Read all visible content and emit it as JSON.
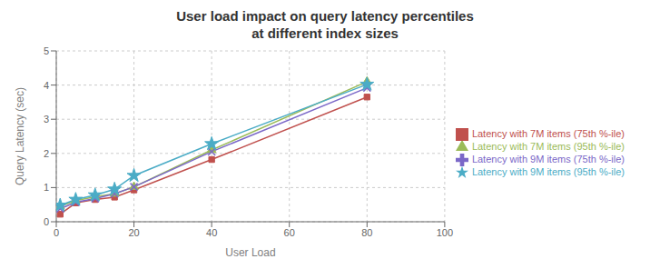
{
  "chart_data": {
    "type": "line",
    "title": "User load impact on query latency percentiles\nat different index sizes",
    "x_label": "User Load",
    "y_label": "Query Latency (sec)",
    "x": [
      1,
      5,
      10,
      15,
      20,
      40,
      80
    ],
    "xlim": [
      0,
      100
    ],
    "ylim": [
      0,
      5
    ],
    "xticks": [
      0,
      20,
      40,
      60,
      80,
      100
    ],
    "yticks": [
      0,
      1,
      2,
      3,
      4,
      5
    ],
    "grid": true,
    "legend": "right",
    "series": [
      {
        "name": "Latency with 7M items (75th %-ile)",
        "color": "#C0504D",
        "marker": "square",
        "values": [
          0.22,
          0.55,
          0.65,
          0.72,
          0.93,
          1.82,
          3.65
        ]
      },
      {
        "name": "Latency with 7M items (95th %-ile)",
        "color": "#9BBB59",
        "marker": "triangle",
        "values": [
          0.45,
          0.62,
          0.73,
          0.82,
          1.02,
          2.1,
          4.1
        ]
      },
      {
        "name": "Latency with 9M items (75th %-ile)",
        "color": "#7B68C8",
        "marker": "x",
        "values": [
          0.38,
          0.57,
          0.68,
          0.82,
          1.02,
          2.05,
          3.92
        ]
      },
      {
        "name": "Latency with 9M items (95th %-ile)",
        "color": "#4BACC6",
        "marker": "star",
        "values": [
          0.48,
          0.65,
          0.78,
          0.95,
          1.35,
          2.28,
          4.02
        ]
      }
    ]
  }
}
